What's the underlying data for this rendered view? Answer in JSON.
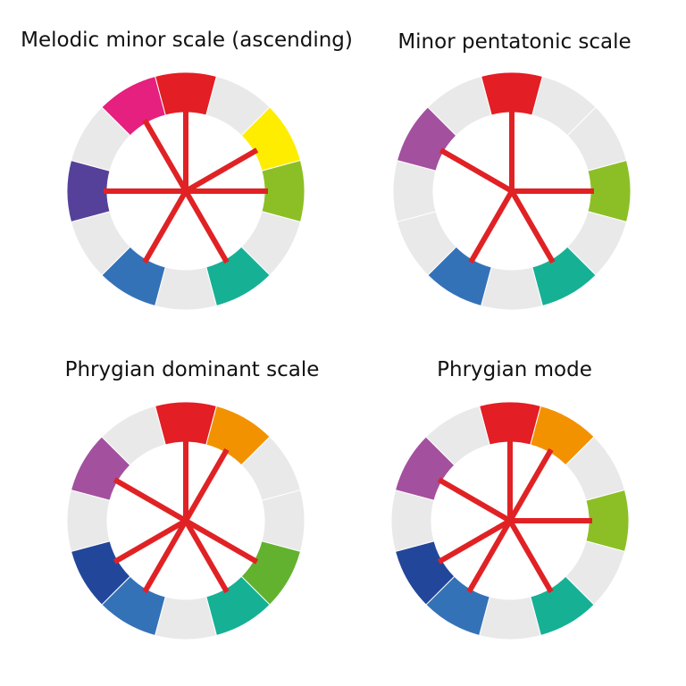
{
  "colors": {
    "inactive": "#e9e9e9",
    "spoke": "#e02225",
    "segments": [
      "#e31e24",
      "#f39200",
      "#ffed00",
      "#8cbf26",
      "#62b22f",
      "#16b095",
      "#2273b8",
      "#3472b8",
      "#22479a",
      "#55419a",
      "#a3509f",
      "#e5207e"
    ]
  },
  "diagrams": [
    {
      "title": "Melodic minor scale (ascending)",
      "notes": [
        0,
        2,
        3,
        5,
        7,
        9,
        11
      ]
    },
    {
      "title": "Minor pentatonic scale",
      "notes": [
        0,
        3,
        5,
        7,
        10
      ]
    },
    {
      "title": "Phrygian dominant scale",
      "notes": [
        0,
        1,
        4,
        5,
        7,
        8,
        10
      ]
    },
    {
      "title": "Phrygian mode",
      "notes": [
        0,
        1,
        3,
        5,
        7,
        8,
        10
      ]
    }
  ]
}
